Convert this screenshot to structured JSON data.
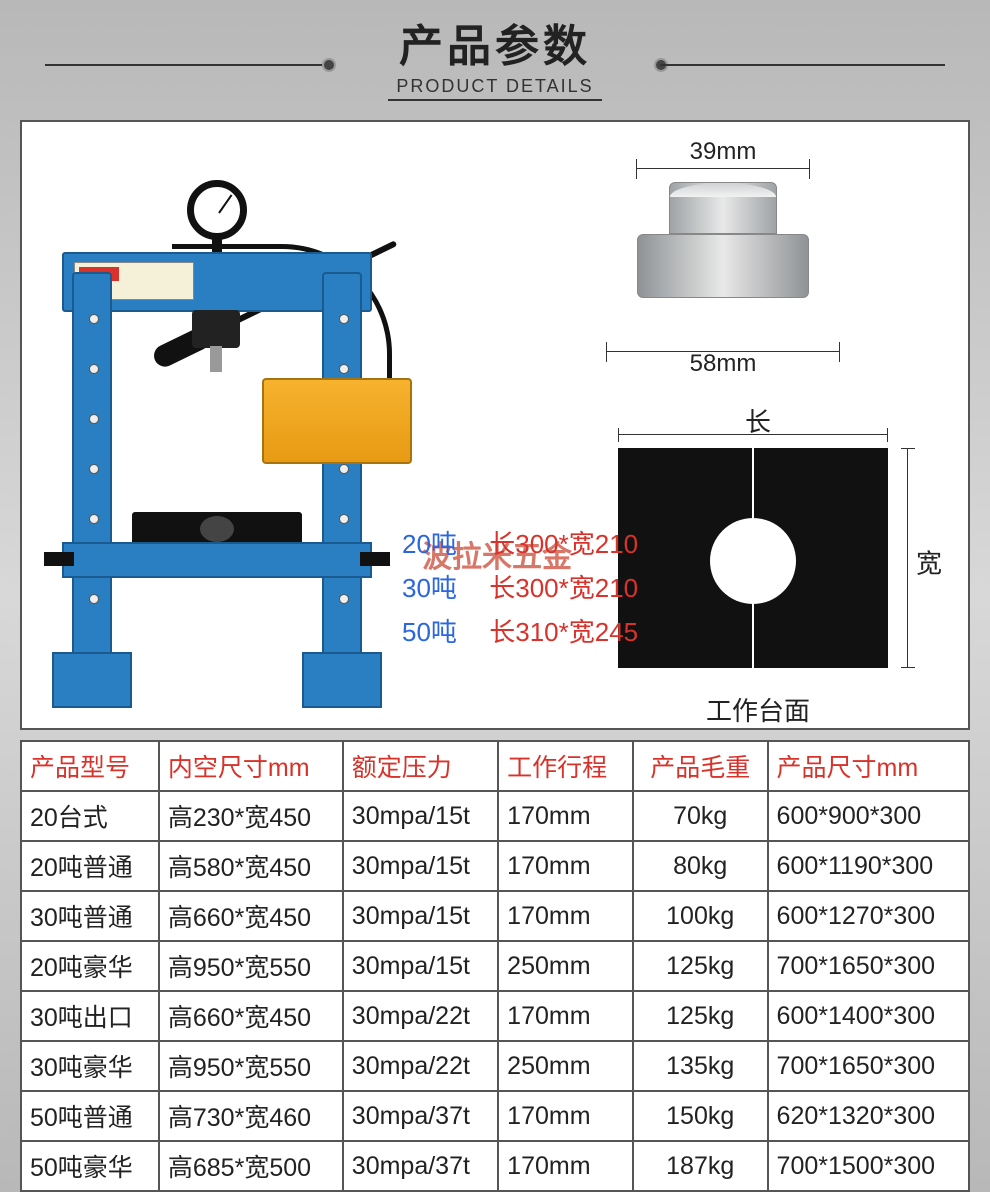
{
  "header": {
    "title_cn": "产品参数",
    "title_en": "PRODUCT DETAILS"
  },
  "cylinder": {
    "top_dim": "39mm",
    "bottom_dim": "58mm"
  },
  "worktable": {
    "length_label": "长",
    "width_label": "宽",
    "caption": "工作台面"
  },
  "watermark": "波拉米五金",
  "specs": [
    {
      "ton": "20吨",
      "size": "长300*宽210"
    },
    {
      "ton": "30吨",
      "size": "长300*宽210"
    },
    {
      "ton": "50吨",
      "size": "长310*宽245"
    }
  ],
  "table": {
    "columns": [
      "产品型号",
      "内空尺寸mm",
      "额定压力",
      "工作行程",
      "产品毛重",
      "产品尺寸mm"
    ],
    "col_align": [
      "left",
      "left",
      "left",
      "left",
      "center",
      "left"
    ],
    "rows": [
      [
        "20台式",
        "高230*宽450",
        "30mpa/15t",
        "170mm",
        "70kg",
        "600*900*300"
      ],
      [
        "20吨普通",
        "高580*宽450",
        "30mpa/15t",
        "170mm",
        "80kg",
        "600*1190*300"
      ],
      [
        "30吨普通",
        "高660*宽450",
        "30mpa/15t",
        "170mm",
        "100kg",
        "600*1270*300"
      ],
      [
        "20吨豪华",
        "高950*宽550",
        "30mpa/15t",
        "250mm",
        "125kg",
        "700*1650*300"
      ],
      [
        "30吨出口",
        "高660*宽450",
        "30mpa/22t",
        "170mm",
        "125kg",
        "600*1400*300"
      ],
      [
        "30吨豪华",
        "高950*宽550",
        "30mpa/22t",
        "250mm",
        "135kg",
        "700*1650*300"
      ],
      [
        "50吨普通",
        "高730*宽460",
        "30mpa/37t",
        "170mm",
        "150kg",
        "620*1320*300"
      ],
      [
        "50吨豪华",
        "高685*宽500",
        "30mpa/37t",
        "170mm",
        "187kg",
        "700*1500*300"
      ]
    ]
  },
  "colors": {
    "header_red": "#d8322a",
    "spec_blue": "#2a66e0",
    "spec_red": "#d8322a",
    "press_blue": "#2a7ec2",
    "pump_orange": "#f0a820"
  }
}
